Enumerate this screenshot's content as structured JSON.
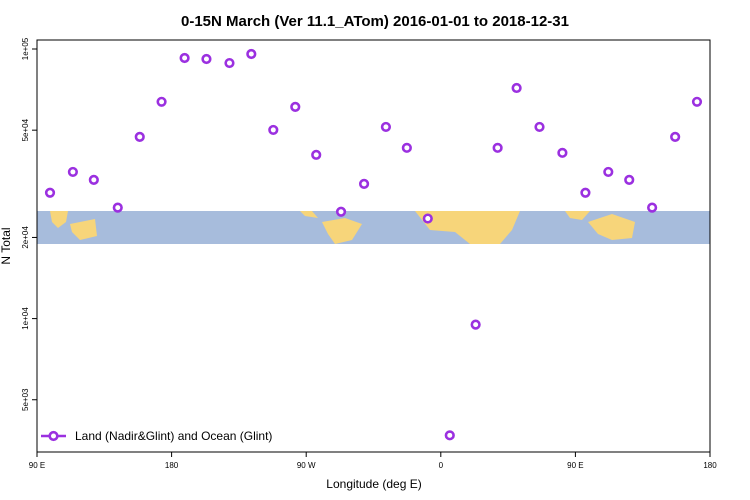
{
  "chart_data": {
    "type": "scatter",
    "title": "0-15N March (Ver 11.1_ATom)   2016-01-01 to 2018-12-31",
    "x_label": "Longitude (deg E)",
    "y_label": "N Total",
    "ylog": true,
    "grid": false,
    "legend_location": "lower left",
    "xlim": [
      90,
      540
    ],
    "ylim": [
      3200,
      108000
    ],
    "xticks": [
      {
        "value": 90,
        "label": "90 E"
      },
      {
        "value": 180,
        "label": "180"
      },
      {
        "value": 270,
        "label": "90 W"
      },
      {
        "value": 360,
        "label": "0"
      },
      {
        "value": 450,
        "label": "90 E"
      },
      {
        "value": 540,
        "label": "180"
      }
    ],
    "yticks": [
      {
        "value": 5000,
        "label": "5e+03"
      },
      {
        "value": 10000,
        "label": "1e+04"
      },
      {
        "value": 20000,
        "label": "2e+04"
      },
      {
        "value": 50000,
        "label": "5e+04"
      },
      {
        "value": 100000,
        "label": "1e+05"
      }
    ],
    "x": [
      98.7,
      114,
      128,
      144,
      158.7,
      173.3,
      188.7,
      203.3,
      218.7,
      233.3,
      248,
      262.7,
      276.7,
      293.3,
      308.7,
      323.3,
      337.3,
      351.3,
      366,
      383.3,
      398,
      410.7,
      426,
      441.3,
      456.7,
      472,
      486,
      501.3,
      516.7,
      531.3
    ],
    "series": [
      {
        "name": "Land (Nadir&Glint) and Ocean (Glint)",
        "color": "#9b30e0",
        "values": [
          29300,
          35000,
          32700,
          25800,
          47200,
          63700,
          92600,
          91800,
          88700,
          95800,
          50100,
          61000,
          40500,
          24900,
          31600,
          51400,
          43000,
          23500,
          3690,
          9500,
          43000,
          71700,
          51400,
          41200,
          29300,
          35000,
          32700,
          25800,
          47200,
          63700
        ]
      }
    ]
  }
}
